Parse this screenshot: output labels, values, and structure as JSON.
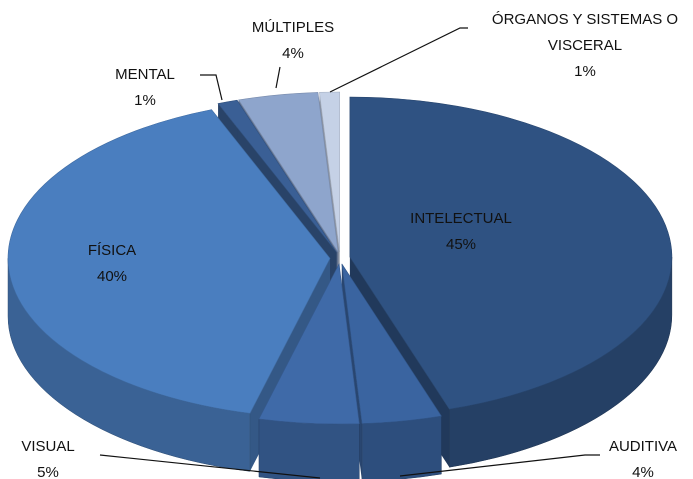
{
  "chart_data": {
    "type": "pie",
    "categories": [
      "INTELECTUAL",
      "AUDITIVA",
      "VISUAL",
      "FÍSICA",
      "MENTAL",
      "MÚLTIPLES",
      "ÓRGANOS Y SISTEMAS O VISCERAL"
    ],
    "values": [
      45,
      4,
      5,
      40,
      1,
      4,
      1
    ],
    "value_labels": [
      "45%",
      "4%",
      "5%",
      "40%",
      "1%",
      "4%",
      "1%"
    ],
    "colors": [
      "#2f5282",
      "#3a64a0",
      "#3f6aa8",
      "#4a7ebf",
      "#3a5f95",
      "#8ea5cc",
      "#c5d1e6"
    ]
  }
}
